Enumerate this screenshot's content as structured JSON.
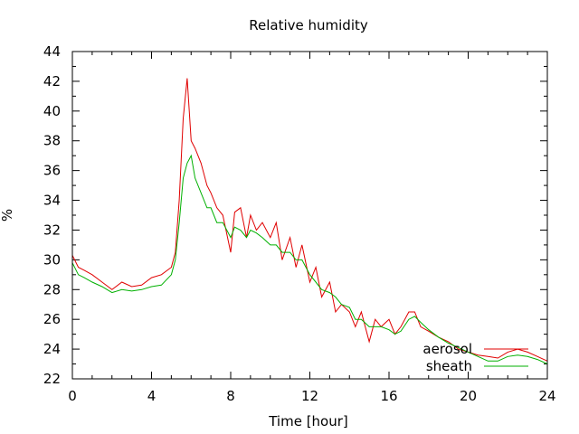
{
  "chart_data": {
    "type": "line",
    "title": "Relative humidity",
    "xlabel": "Time [hour]",
    "ylabel": "%",
    "xlim": [
      0,
      24
    ],
    "ylim": [
      22,
      44
    ],
    "xticks": [
      0,
      4,
      8,
      12,
      16,
      20,
      24
    ],
    "yticks": [
      22,
      24,
      26,
      28,
      30,
      32,
      34,
      36,
      38,
      40,
      42,
      44
    ],
    "grid": false,
    "legend_position": "bottom-right",
    "series": [
      {
        "name": "aerosol",
        "color": "#e00000",
        "x": [
          0,
          0.3,
          0.6,
          1.0,
          1.5,
          2.0,
          2.5,
          3.0,
          3.5,
          4.0,
          4.5,
          5.0,
          5.2,
          5.4,
          5.6,
          5.8,
          6.0,
          6.2,
          6.5,
          6.8,
          7.0,
          7.3,
          7.6,
          8.0,
          8.2,
          8.5,
          8.8,
          9.0,
          9.3,
          9.6,
          10.0,
          10.3,
          10.6,
          11.0,
          11.3,
          11.6,
          12.0,
          12.3,
          12.6,
          13.0,
          13.3,
          13.6,
          14.0,
          14.3,
          14.6,
          15.0,
          15.3,
          15.6,
          16.0,
          16.3,
          16.6,
          17.0,
          17.3,
          17.6,
          18.0,
          18.5,
          19.0,
          19.5,
          20.0,
          20.5,
          21.0,
          21.5,
          22.0,
          22.5,
          23.0,
          23.5,
          24.0
        ],
        "y": [
          30.3,
          29.5,
          29.3,
          29.0,
          28.5,
          28.0,
          28.5,
          28.2,
          28.3,
          28.8,
          29.0,
          29.5,
          30.5,
          34.0,
          39.5,
          42.2,
          38.0,
          37.5,
          36.5,
          35.0,
          34.5,
          33.5,
          33.0,
          30.5,
          33.2,
          33.5,
          31.5,
          33.0,
          32.0,
          32.5,
          31.5,
          32.5,
          30.0,
          31.5,
          29.5,
          31.0,
          28.5,
          29.5,
          27.5,
          28.5,
          26.5,
          27.0,
          26.5,
          25.5,
          26.5,
          24.5,
          26.0,
          25.5,
          26.0,
          25.0,
          25.5,
          26.5,
          26.5,
          25.5,
          25.2,
          24.8,
          24.5,
          24.0,
          23.8,
          23.6,
          23.5,
          23.4,
          23.8,
          24.0,
          23.8,
          23.5,
          23.2
        ]
      },
      {
        "name": "sheath",
        "color": "#00b000",
        "x": [
          0,
          0.3,
          0.6,
          1.0,
          1.5,
          2.0,
          2.5,
          3.0,
          3.5,
          4.0,
          4.5,
          5.0,
          5.2,
          5.4,
          5.6,
          5.8,
          6.0,
          6.2,
          6.5,
          6.8,
          7.0,
          7.3,
          7.6,
          8.0,
          8.2,
          8.5,
          8.8,
          9.0,
          9.3,
          9.6,
          10.0,
          10.3,
          10.6,
          11.0,
          11.3,
          11.6,
          12.0,
          12.3,
          12.6,
          13.0,
          13.3,
          13.6,
          14.0,
          14.3,
          14.6,
          15.0,
          15.3,
          15.6,
          16.0,
          16.3,
          16.6,
          17.0,
          17.3,
          17.6,
          18.0,
          18.5,
          19.0,
          19.5,
          20.0,
          20.5,
          21.0,
          21.5,
          22.0,
          22.5,
          23.0,
          23.5,
          24.0
        ],
        "y": [
          29.8,
          29.0,
          28.8,
          28.5,
          28.2,
          27.8,
          28.0,
          27.9,
          28.0,
          28.2,
          28.3,
          29.0,
          30.0,
          32.5,
          35.5,
          36.5,
          37.0,
          35.5,
          34.5,
          33.5,
          33.5,
          32.5,
          32.5,
          31.5,
          32.2,
          32.0,
          31.5,
          32.0,
          31.8,
          31.5,
          31.0,
          31.0,
          30.5,
          30.5,
          30.0,
          30.0,
          29.0,
          28.5,
          28.0,
          27.8,
          27.5,
          27.0,
          26.8,
          26.0,
          26.0,
          25.5,
          25.5,
          25.5,
          25.3,
          25.0,
          25.2,
          26.0,
          26.2,
          25.8,
          25.3,
          24.8,
          24.4,
          24.1,
          23.8,
          23.5,
          23.2,
          23.2,
          23.5,
          23.6,
          23.5,
          23.3,
          23.0
        ]
      }
    ]
  }
}
